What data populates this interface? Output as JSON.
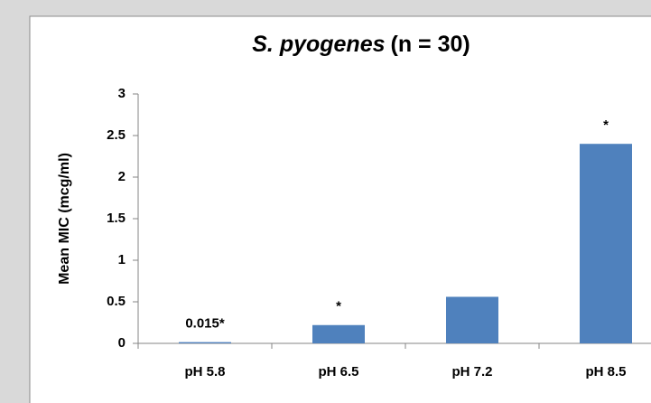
{
  "chart_data": {
    "type": "bar",
    "title": {
      "italic": "S. pyogenes",
      "plain": "(n = 30)"
    },
    "y_label": "Mean MIC (mcg/ml)",
    "categories": [
      "pH 5.8",
      "pH 6.5",
      "pH 7.2",
      "pH 8.5"
    ],
    "values": [
      0.015,
      0.22,
      0.56,
      2.4
    ],
    "value_labels": [
      "0.015*",
      "*",
      null,
      "*"
    ],
    "color": "#4f81bd",
    "ylim": [
      0,
      3
    ],
    "yticks": [
      0,
      0.5,
      1,
      1.5,
      2,
      2.5,
      3
    ],
    "grid": false
  }
}
